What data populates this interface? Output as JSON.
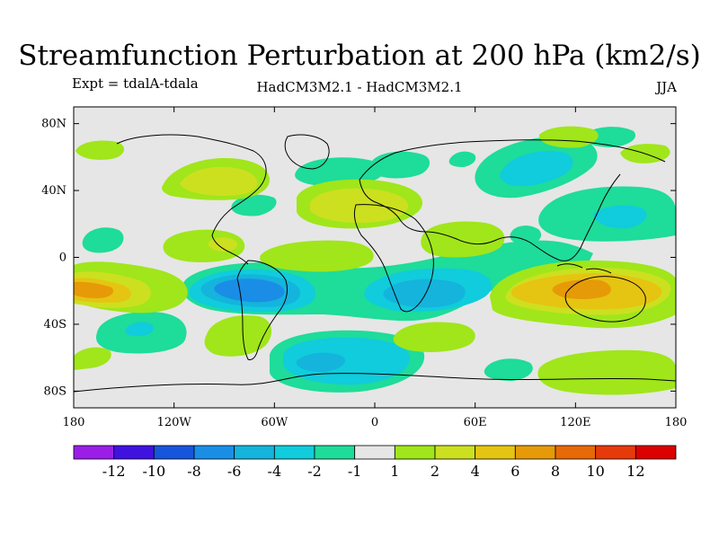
{
  "title": "Streamfunction Perturbation at 200 hPa (km2/s)",
  "subtitle_left": "Expt = tdalA-tdala",
  "subtitle_center": "HadCM3M2.1 - HadCM3M2.1",
  "subtitle_right": "JJA",
  "chart_data": {
    "type": "contour-map",
    "projection": "cylindrical-equidistant",
    "variable": "Streamfunction Perturbation",
    "units": "km2/s",
    "level": "200 hPa",
    "season": "JJA",
    "lon_range": [
      -180,
      180
    ],
    "lat_range": [
      -90,
      90
    ],
    "x_ticks": [
      {
        "lon": -180,
        "label": "180"
      },
      {
        "lon": -120,
        "label": "120W"
      },
      {
        "lon": -60,
        "label": "60W"
      },
      {
        "lon": 0,
        "label": "0"
      },
      {
        "lon": 60,
        "label": "60E"
      },
      {
        "lon": 120,
        "label": "120E"
      },
      {
        "lon": 180,
        "label": "180"
      }
    ],
    "y_ticks": [
      {
        "lat": 80,
        "label": "80N"
      },
      {
        "lat": 40,
        "label": "40N"
      },
      {
        "lat": 0,
        "label": "0"
      },
      {
        "lat": -40,
        "label": "40S"
      },
      {
        "lat": -80,
        "label": "80S"
      }
    ],
    "colorbar": {
      "levels": [
        "-12",
        "-10",
        "-8",
        "-6",
        "-4",
        "-2",
        "-1",
        "1",
        "2",
        "4",
        "6",
        "8",
        "10",
        "12"
      ],
      "colors": [
        "#9a1ee8",
        "#4012e0",
        "#1656dc",
        "#1a8ee6",
        "#14b4dc",
        "#10ccdc",
        "#1edc9a",
        "#e6e6e6",
        "#a0e61a",
        "#cce020",
        "#e6c412",
        "#e69a08",
        "#e66a06",
        "#e63a0a",
        "#dc0000"
      ]
    },
    "features": [
      {
        "name": "neg-band-southern-tropics",
        "level": -2,
        "lon": [
          -120,
          95
        ],
        "lat": [
          -42,
          -8
        ]
      },
      {
        "name": "neg-center-south-america",
        "level": -6,
        "lon": -80,
        "lat": -18
      },
      {
        "name": "neg-center-southern-africa",
        "level": -4,
        "lon": 15,
        "lat": -28
      },
      {
        "name": "neg-center-south-atlantic",
        "level": -4,
        "lon": -20,
        "lat": -63
      },
      {
        "name": "neg-center-asia",
        "level": -4,
        "lon": 70,
        "lat": 55
      },
      {
        "name": "neg-center-west-pacific",
        "level": -4,
        "lon": 150,
        "lat": 45
      },
      {
        "name": "neg-center-south-pacific",
        "level": -4,
        "lon": -140,
        "lat": -45
      },
      {
        "name": "pos-band-tropical-pacific",
        "level": 2,
        "lon": [
          -180,
          -90
        ],
        "lat": [
          -35,
          -5
        ]
      },
      {
        "name": "pos-center-east-pacific",
        "level": 6,
        "lon": -170,
        "lat": -20
      },
      {
        "name": "pos-center-australia",
        "level": 6,
        "lon": 130,
        "lat": -25
      },
      {
        "name": "pos-center-north-atlantic",
        "level": 4,
        "lon": -85,
        "lat": 48
      },
      {
        "name": "pos-center-europe",
        "level": 4,
        "lon": -15,
        "lat": 47
      },
      {
        "name": "pos-center-southern-ocean",
        "level": 2,
        "lon": 150,
        "lat": -60
      }
    ]
  }
}
